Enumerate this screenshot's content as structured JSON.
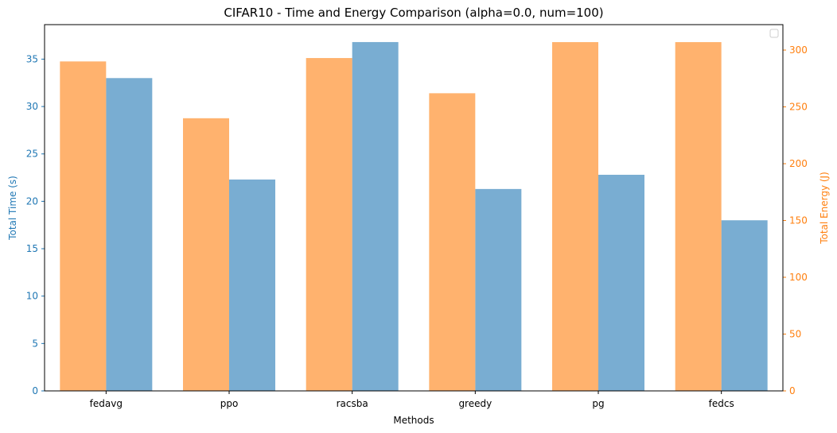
{
  "chart_data": {
    "type": "bar",
    "title": "CIFAR10 - Time and Energy Comparison (alpha=0.0, num=100)",
    "xlabel": "Methods",
    "categories": [
      "fedavg",
      "ppo",
      "racsba",
      "greedy",
      "pg",
      "fedcs"
    ],
    "series": [
      {
        "ylabel": "Total Time (s)",
        "axis": "left",
        "color": "#1f77b4",
        "opacity": 0.6,
        "values": [
          33.0,
          22.3,
          36.8,
          21.3,
          22.8,
          18.0
        ]
      },
      {
        "ylabel": "Total Energy (J)",
        "axis": "right",
        "color": "#ff7f0e",
        "opacity": 0.6,
        "values": [
          290,
          240,
          293,
          262,
          307,
          307
        ]
      }
    ],
    "y_left": {
      "min": 0,
      "max": 38.64,
      "ticks": [
        0,
        5,
        10,
        15,
        20,
        25,
        30,
        35
      ]
    },
    "y_right": {
      "min": 0,
      "max": 322.4,
      "ticks": [
        0,
        50,
        100,
        150,
        200,
        250,
        300
      ]
    },
    "grid": false,
    "legend": "top-right (empty)"
  }
}
